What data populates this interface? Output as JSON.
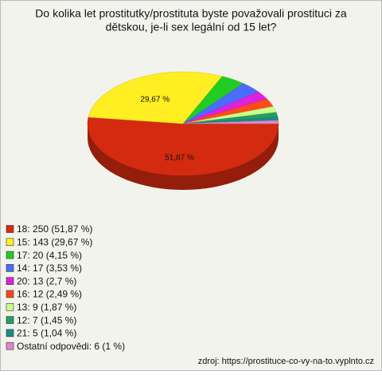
{
  "chart_data": {
    "type": "pie",
    "title": [
      "Do kolika let prostitutky/prostituta byste považovali prostituci za",
      "dětskou, je-li sex legální od 15 let?"
    ],
    "categories": [
      "18: 250 (51,87 %)",
      "15: 143 (29,67 %)",
      "17: 20 (4,15 %)",
      "14: 17 (3,53 %)",
      "20: 13 (2,7 %)",
      "16: 12 (2,49 %)",
      "13: 9 (1,87 %)",
      "12: 7 (1,45 %)",
      "21: 5 (1,04 %)",
      "Ostatní odpovědi: 6 (1 %)"
    ],
    "values": [
      51.87,
      29.67,
      4.15,
      3.53,
      2.7,
      2.49,
      1.87,
      1.45,
      1.04,
      1
    ],
    "value_labels": [
      "51,87 %",
      "29,67 %",
      null,
      null,
      null,
      null,
      null,
      null,
      null,
      null
    ],
    "colors": [
      "#d42a10",
      "#ffee22",
      "#22cc22",
      "#4a6cff",
      "#dd22dd",
      "#ff4a1a",
      "#ccff88",
      "#22a060",
      "#1f8a86",
      "#dd88cc"
    ],
    "source": "zdroj: https://prostituce-co-vy-na-to.vyplnto.cz"
  }
}
